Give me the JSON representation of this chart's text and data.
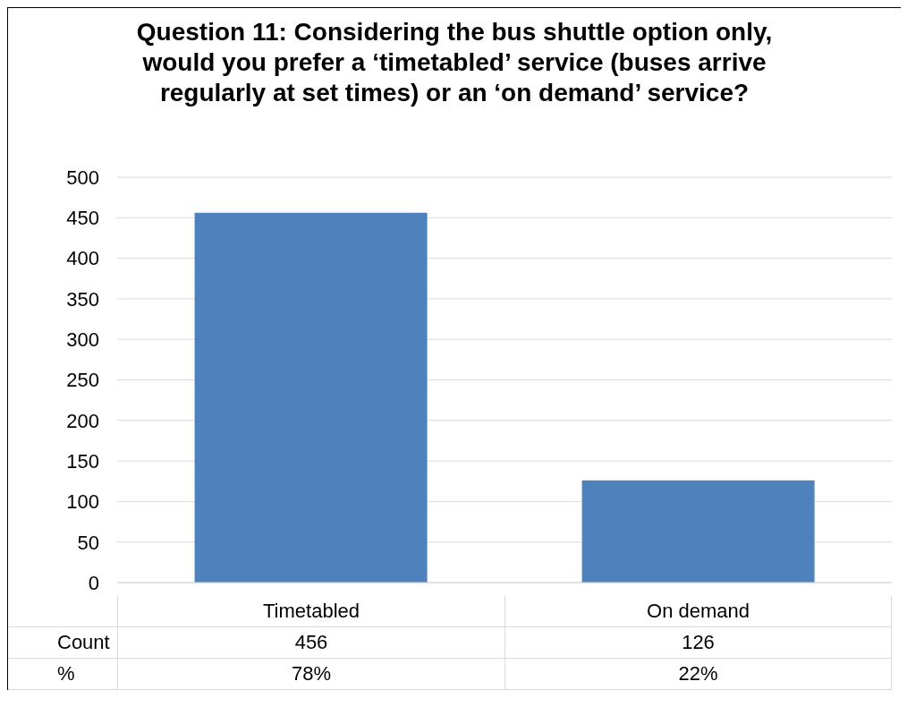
{
  "chart_data": {
    "type": "bar",
    "title": "Question 11: Considering the bus shuttle option only, would you prefer a ‘timetabled’ service (buses arrive regularly at set times) or an ‘on demand’ service?",
    "categories": [
      "Timetabled",
      "On demand"
    ],
    "series": [
      {
        "name": "Count",
        "color": "#4f81bd",
        "values": [
          456,
          126
        ]
      }
    ],
    "ylim": [
      0,
      500
    ],
    "yticks": [
      0,
      50,
      100,
      150,
      200,
      250,
      300,
      350,
      400,
      450,
      500
    ],
    "grid": "y",
    "data_labels": true,
    "annotations": [
      "%",
      "78%",
      "22%"
    ]
  }
}
